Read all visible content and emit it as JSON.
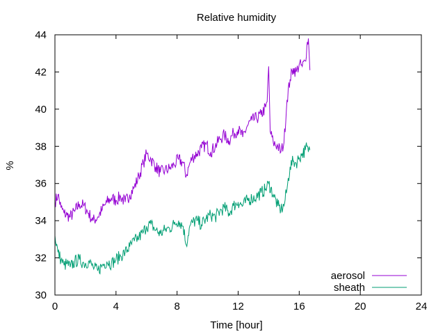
{
  "chart_data": {
    "type": "line",
    "title": "Relative humidity",
    "xlabel": "Time [hour]",
    "ylabel": "%",
    "xlim": [
      0,
      24
    ],
    "ylim": [
      30,
      44
    ],
    "xticks": [
      0,
      4,
      8,
      12,
      16,
      20,
      24
    ],
    "yticks": [
      30,
      32,
      34,
      36,
      38,
      40,
      42,
      44
    ],
    "grid": false,
    "legend_position": "bottom-right",
    "series": [
      {
        "name": "aerosol",
        "color": "#9400d3",
        "x": [
          0,
          0.2,
          0.4,
          0.6,
          0.8,
          1.0,
          1.3,
          1.6,
          1.9,
          2.2,
          2.5,
          2.8,
          3.1,
          3.4,
          3.7,
          4.0,
          4.3,
          4.6,
          4.9,
          5.2,
          5.5,
          5.8,
          6.0,
          6.3,
          6.6,
          6.9,
          7.2,
          7.5,
          7.8,
          8.1,
          8.4,
          8.6,
          8.8,
          9.0,
          9.3,
          9.6,
          9.9,
          10.2,
          10.5,
          10.8,
          11.1,
          11.4,
          11.7,
          12.0,
          12.3,
          12.6,
          12.9,
          13.2,
          13.5,
          13.8,
          13.9,
          14.0,
          14.1,
          14.3,
          14.6,
          14.8,
          15.0,
          15.2,
          15.4,
          15.6,
          15.8,
          16.0,
          16.2,
          16.4,
          16.5,
          16.6,
          16.7
        ],
        "y": [
          35.0,
          35.4,
          34.7,
          34.4,
          34.3,
          34.2,
          34.5,
          34.9,
          34.8,
          34.4,
          34.0,
          34.2,
          34.6,
          35.0,
          35.2,
          35.1,
          35.3,
          35.0,
          35.4,
          35.8,
          36.4,
          37.1,
          37.6,
          37.3,
          36.9,
          36.6,
          36.7,
          36.8,
          37.0,
          37.3,
          37.1,
          36.4,
          37.0,
          37.4,
          37.6,
          37.9,
          38.1,
          37.7,
          38.0,
          38.4,
          38.6,
          38.3,
          38.7,
          38.9,
          38.5,
          39.1,
          39.4,
          39.5,
          39.7,
          40.1,
          40.4,
          42.3,
          38.8,
          38.2,
          38.0,
          37.7,
          38.2,
          40.5,
          41.6,
          42.2,
          42.0,
          42.4,
          42.3,
          42.6,
          43.4,
          43.8,
          42.1
        ]
      },
      {
        "name": "sheath",
        "color": "#009e73",
        "x": [
          0,
          0.2,
          0.4,
          0.6,
          0.8,
          1.0,
          1.3,
          1.6,
          1.9,
          2.2,
          2.5,
          2.8,
          3.1,
          3.4,
          3.7,
          4.0,
          4.3,
          4.6,
          4.9,
          5.2,
          5.5,
          5.8,
          6.0,
          6.3,
          6.6,
          6.9,
          7.2,
          7.5,
          7.8,
          8.1,
          8.4,
          8.6,
          8.8,
          9.0,
          9.3,
          9.6,
          9.9,
          10.2,
          10.5,
          10.8,
          11.1,
          11.4,
          11.7,
          12.0,
          12.3,
          12.6,
          12.9,
          13.2,
          13.5,
          13.8,
          14.0,
          14.3,
          14.6,
          14.8,
          15.0,
          15.2,
          15.4,
          15.6,
          15.8,
          16.0,
          16.2,
          16.4,
          16.5,
          16.6,
          16.7
        ],
        "y": [
          33.2,
          32.3,
          31.9,
          31.6,
          31.7,
          31.5,
          31.8,
          31.9,
          31.7,
          31.8,
          31.5,
          31.3,
          31.6,
          31.8,
          31.7,
          31.9,
          32.1,
          32.3,
          32.6,
          32.9,
          33.1,
          33.4,
          33.7,
          33.8,
          33.5,
          33.3,
          33.5,
          33.6,
          33.8,
          34.0,
          33.7,
          32.7,
          33.6,
          33.9,
          34.0,
          33.8,
          34.1,
          34.3,
          34.2,
          34.5,
          34.7,
          34.4,
          34.8,
          35.0,
          34.8,
          35.1,
          35.2,
          35.3,
          35.5,
          35.7,
          36.0,
          35.4,
          34.8,
          34.6,
          34.8,
          35.7,
          36.9,
          37.2,
          37.1,
          37.4,
          37.6,
          37.8,
          38.0,
          37.7,
          37.8
        ]
      }
    ]
  }
}
